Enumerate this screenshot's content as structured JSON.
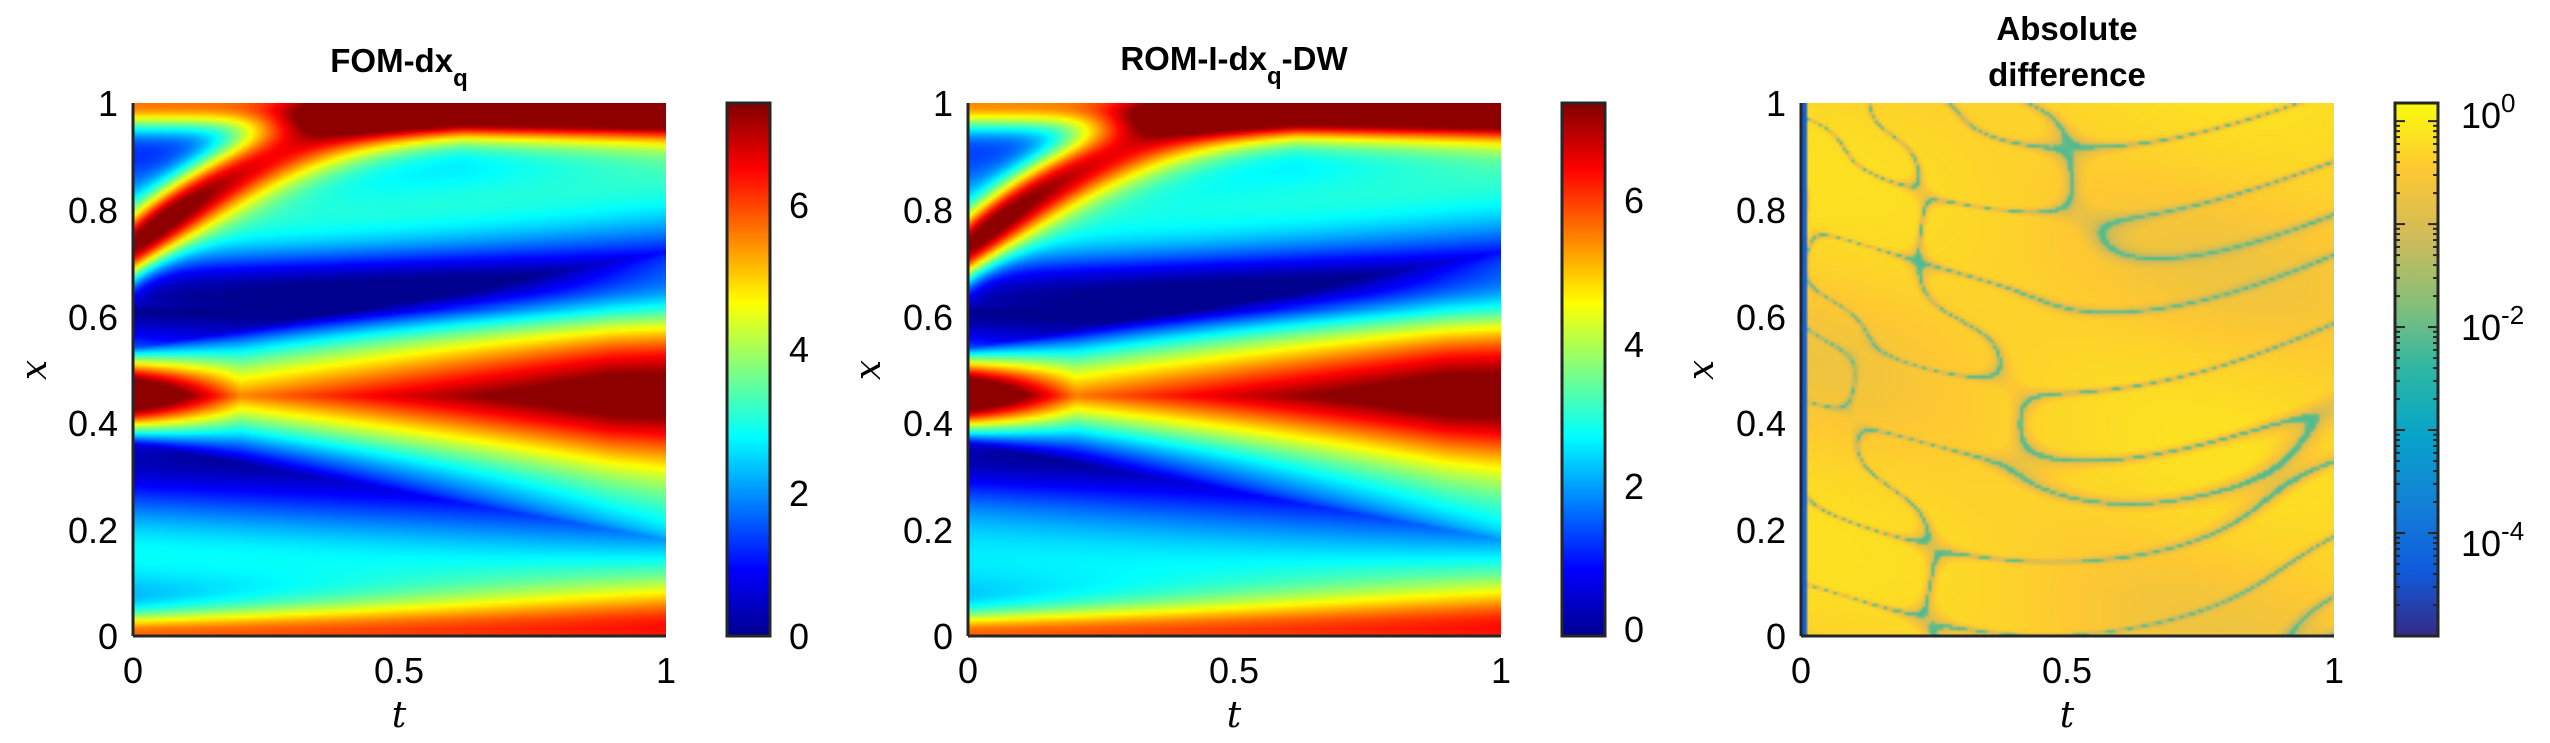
{
  "colors": {
    "jet": [
      "#00008f",
      "#0000ff",
      "#0080ff",
      "#00ffff",
      "#80ff80",
      "#ffff00",
      "#ff8000",
      "#ff0000",
      "#800000"
    ],
    "parula": [
      "#352a87",
      "#0f5cdd",
      "#1481d6",
      "#06a4ca",
      "#2eb7a4",
      "#87bf77",
      "#d1bb59",
      "#fec832",
      "#f9fb0e"
    ]
  },
  "chart_data": [
    {
      "type": "heatmap",
      "title": "FOM-dx",
      "title_sub": "q",
      "xlabel": "t",
      "ylabel": "x",
      "xlim": [
        0,
        1
      ],
      "ylim": [
        0,
        1
      ],
      "xticks": [
        "0",
        "0.5",
        "1"
      ],
      "yticks": [
        "0",
        "0.2",
        "0.4",
        "0.6",
        "0.8",
        "1"
      ],
      "colormap": "jet",
      "clim": [
        0,
        7.4
      ],
      "colorbar_ticks": [
        "0",
        "2",
        "4",
        "6"
      ],
      "colorbar_scale": "linear",
      "field": "velocity-like wave: high (~7.2) along x≈0.45 for t>0.5, low (~0) near x≈0.65 and x≈0.35, ~4–5 at x=0 and x=1 boundaries"
    },
    {
      "type": "heatmap",
      "title": "ROM-I-dx",
      "title_sub": "q",
      "title_suffix": "-DW",
      "xlabel": "t",
      "ylabel": "x",
      "xlim": [
        0,
        1
      ],
      "ylim": [
        0,
        1
      ],
      "xticks": [
        "0",
        "0.5",
        "1"
      ],
      "yticks": [
        "0",
        "0.2",
        "0.4",
        "0.6",
        "0.8",
        "1"
      ],
      "colormap": "jet",
      "clim": [
        0,
        7.4
      ],
      "colorbar_ticks": [
        "0",
        "2",
        "4",
        "6"
      ],
      "colorbar_scale": "linear",
      "field": "same structure as FOM panel"
    },
    {
      "type": "heatmap",
      "title_lines": [
        "Absolute",
        "difference"
      ],
      "xlabel": "t",
      "ylabel": "x",
      "xlim": [
        0,
        1
      ],
      "ylim": [
        0,
        1
      ],
      "xticks": [
        "0",
        "0.5",
        "1"
      ],
      "yticks": [
        "0",
        "0.2",
        "0.4",
        "0.6",
        "0.8",
        "1"
      ],
      "colormap": "parula",
      "clim": [
        1e-05,
        1.5
      ],
      "colorbar_ticks": [
        {
          "base": "10",
          "exp": "0"
        },
        {
          "base": "10",
          "exp": "-2"
        },
        {
          "base": "10",
          "exp": "-4"
        }
      ],
      "colorbar_scale": "log"
    }
  ]
}
